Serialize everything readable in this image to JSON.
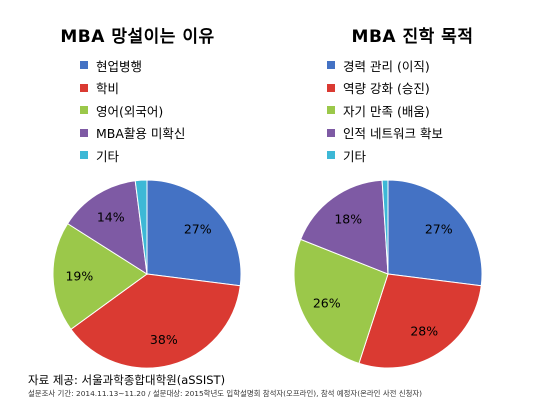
{
  "chart_data": [
    {
      "type": "pie",
      "title": "MBA 망설이는 이유",
      "labels": [
        "현업병행",
        "학비",
        "영어(외국어)",
        "MBA활용 미확신",
        "기타"
      ],
      "values": [
        27,
        38,
        19,
        14,
        2
      ],
      "value_labels": [
        "27%",
        "38%",
        "19%",
        "14%",
        "2%"
      ],
      "colors": [
        "#4472C4",
        "#DA3A32",
        "#9BC84A",
        "#7E5AA4",
        "#3DB8D6"
      ],
      "legend_position": "top"
    },
    {
      "type": "pie",
      "title": "MBA 진학 목적",
      "labels": [
        "경력 관리 (이직)",
        "역량 강화 (승진)",
        "자기 만족 (배움)",
        "인적 네트워크 확보",
        "기타"
      ],
      "values": [
        27,
        28,
        26,
        18,
        1
      ],
      "value_labels": [
        "27%",
        "28%",
        "26%",
        "18%",
        "1%"
      ],
      "colors": [
        "#4472C4",
        "#DA3A32",
        "#9BC84A",
        "#7E5AA4",
        "#3DB8D6"
      ],
      "legend_position": "top"
    }
  ],
  "footer": {
    "source": "자료 제공: 서울과학종합대학원(aSSIST)",
    "note": "설문조사 기간: 2014.11.13~11.20 / 설문대상: 2015학년도 입학설명회 참석자(오프라인), 참석 예정자(온라인 사전 신청자)"
  }
}
